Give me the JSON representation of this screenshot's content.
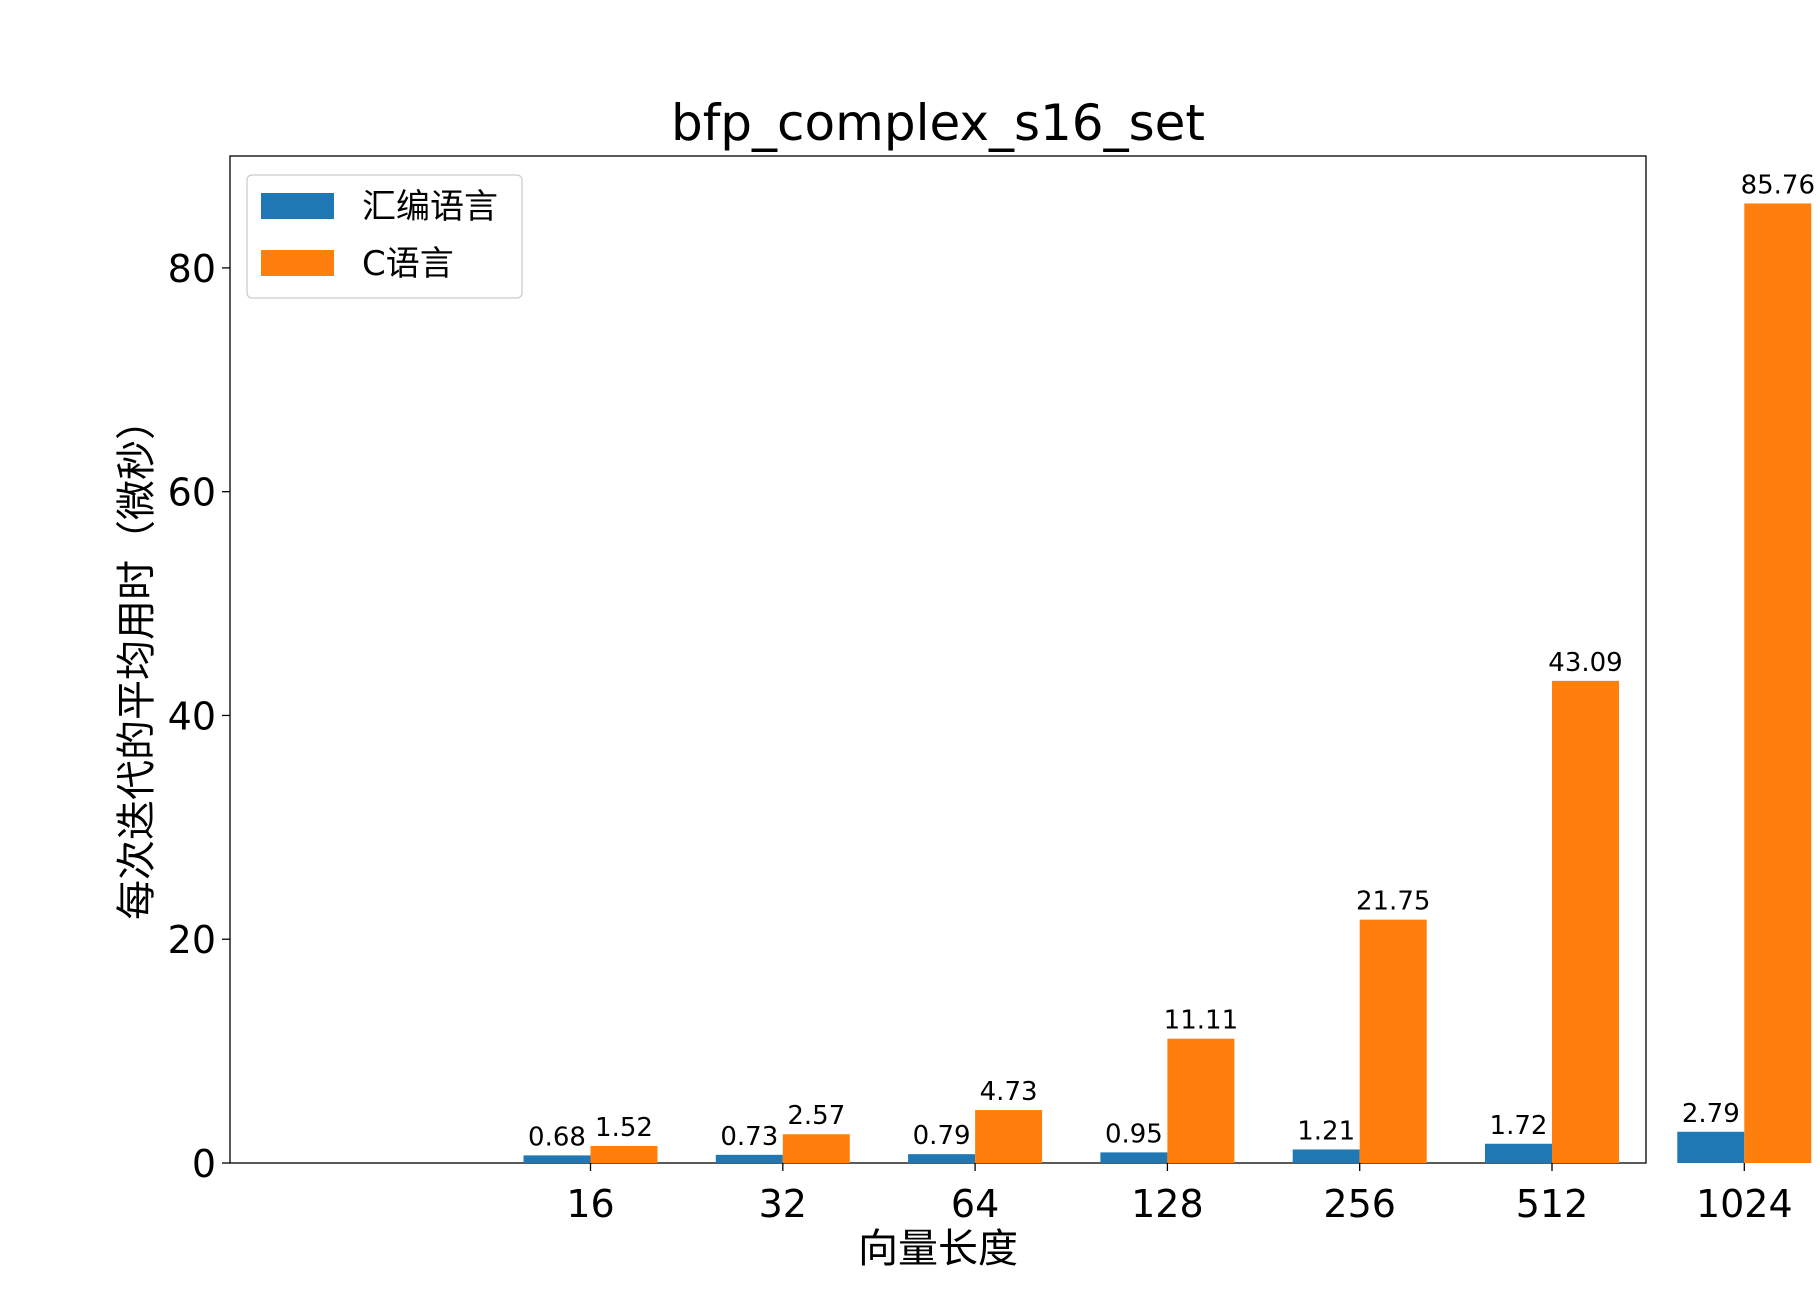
{
  "chart_data": {
    "type": "bar",
    "title": "bfp_complex_s16_set",
    "xlabel": "向量长度",
    "ylabel": "每次迭代的平均用时（微秒）",
    "categories": [
      "16",
      "32",
      "64",
      "128",
      "256",
      "512",
      "1024"
    ],
    "series": [
      {
        "name": "汇编语言",
        "color": "#1f77b4",
        "values": [
          0.68,
          0.73,
          0.79,
          0.95,
          1.21,
          1.72,
          2.79
        ],
        "labels": [
          "0.68",
          "0.73",
          "0.79",
          "0.95",
          "1.21",
          "1.72",
          "2.79"
        ]
      },
      {
        "name": "C语言",
        "color": "#ff7f0e",
        "values": [
          1.52,
          2.57,
          4.73,
          11.11,
          21.75,
          43.09,
          85.76
        ],
        "labels": [
          "1.52",
          "2.57",
          "4.73",
          "11.11",
          "21.75",
          "43.09",
          "85.76"
        ]
      }
    ],
    "ylim": [
      0,
      90
    ],
    "yticks": [
      "0",
      "20",
      "40",
      "60",
      "80"
    ],
    "grid": false,
    "legend": "top-left"
  }
}
